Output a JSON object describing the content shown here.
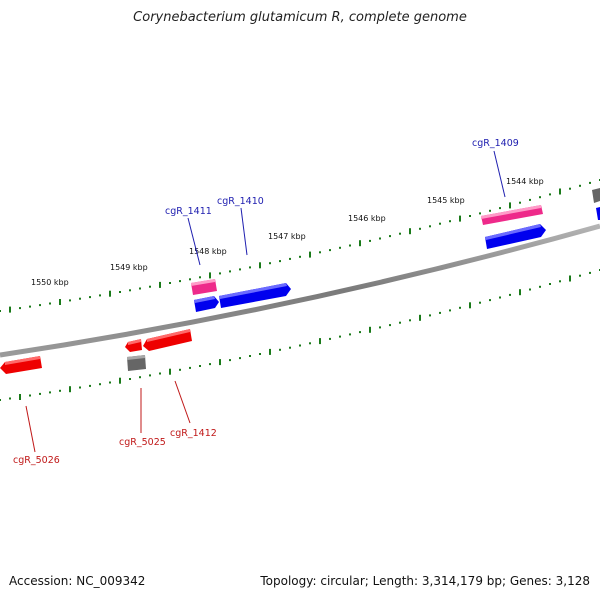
{
  "title": "Corynebacterium glutamicum R, complete genome",
  "footer": {
    "accession": "Accession: NC_009342",
    "summary": "Topology: circular; Length: 3,314,179 bp; Genes: 3,128"
  },
  "colors": {
    "forward_gene": "#0000ee",
    "reverse_gene": "#ee0000",
    "rna_gene": "#ee2a8a",
    "other_feature": "#666666",
    "tick": "#1a7a1a",
    "backbone": "#808080",
    "forward_label": "#2020b0",
    "reverse_label": "#c01818"
  },
  "scale_labels": [
    "1550 kbp",
    "1549 kbp",
    "1548 kbp",
    "1547 kbp",
    "1546 kbp",
    "1545 kbp",
    "1544 kbp"
  ],
  "genes": [
    {
      "label": "cgR_1409",
      "strand": "forward",
      "kind": "cds"
    },
    {
      "label": "cgR_1410",
      "strand": "forward",
      "kind": "cds"
    },
    {
      "label": "cgR_1411",
      "strand": "forward",
      "kind": "rna"
    },
    {
      "label": "cgR_1412",
      "strand": "reverse",
      "kind": "cds"
    },
    {
      "label": "cgR_5025",
      "strand": "reverse",
      "kind": "other"
    },
    {
      "label": "cgR_5026",
      "strand": "reverse",
      "kind": "cds"
    }
  ]
}
